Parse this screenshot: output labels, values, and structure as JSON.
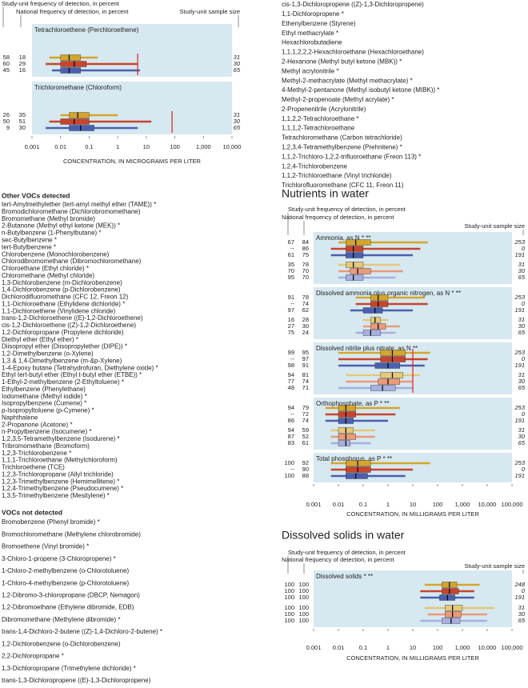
{
  "voc_chart": {
    "type": "boxplot",
    "header_study": "Study-unit frequency of detection, in percent",
    "header_national": "National frequency of detection, in percent",
    "header_sample": "Study-unit sample size",
    "axis_title": "CONCENTRATION, IN MICROGRAMS PER LITER",
    "log_scale": true,
    "xlim": [
      0.001,
      10000
    ],
    "xticks": [
      0.001,
      0.01,
      0.1,
      1,
      10,
      100,
      {
        "value": 1000,
        "label": "1,000"
      },
      {
        "value": 10000,
        "label": "10,000"
      }
    ],
    "colors": [
      "#d4a52a",
      "#c8442c",
      "#4a5fae",
      "#e6c878",
      "#ec9a78",
      "#a7aee0"
    ],
    "benchmark_color": "#e02020",
    "panels": [
      {
        "title": "Tetrachloroethene (Perchloroethene)",
        "benchmark": 5,
        "rows": [
          {
            "study_frequency": 58,
            "national_frequency": 18,
            "sample_size": 31,
            "range": [
              0.004,
              0.2
            ],
            "box": [
              0.01,
              0.05
            ],
            "median": 0.02
          },
          {
            "study_frequency": 60,
            "national_frequency": 29,
            "sample_size": 30,
            "range": [
              0.003,
              5
            ],
            "box": [
              0.01,
              0.08
            ],
            "median": 0.03
          },
          {
            "study_frequency": 45,
            "national_frequency": 16,
            "sample_size": 65,
            "range": [
              0.005,
              6
            ],
            "box": [
              0.01,
              0.05
            ],
            "median": 0.02
          }
        ]
      },
      {
        "title": "Trichloromethane (Chloroform)",
        "benchmark": 80,
        "rows": [
          {
            "study_frequency": 26,
            "national_frequency": 35,
            "sample_size": 31,
            "range": [
              0.01,
              1
            ],
            "box": [
              0.02,
              0.1
            ],
            "median": 0.04
          },
          {
            "study_frequency": 50,
            "national_frequency": 51,
            "sample_size": 30,
            "range": [
              0.004,
              15
            ],
            "box": [
              0.01,
              0.1
            ],
            "median": 0.03
          },
          {
            "study_frequency": 9,
            "national_frequency": 30,
            "sample_size": 65,
            "range": [
              0.003,
              5
            ],
            "box": [
              0.02,
              0.15
            ],
            "median": 0.05
          }
        ]
      }
    ]
  },
  "voc_list_top": [
    "cis-1,3-Dichloropropene ((Z)-1,3-Dichloropropene)",
    "1,1-Dichloropropene *",
    "Ethenylbenzene (Styrene)",
    "Ethyl methacrylate *",
    "Hexachlorobutadiene",
    "1,1,1,2,2,2-Hexachloroethane (Hexachloroethane)",
    "2-Hexanone (Methyl butyl ketone (MBK)) *",
    "Methyl acrylonitrile *",
    "Methyl-2-methacrylate (Methyl methacrylate) *",
    "4-Methyl-2-pentanone (Methyl isobutyl ketone (MIBK)) *",
    "Methyl-2-propenoate (Methyl acrylate) *",
    "2-Propenenitrile (Acrylonitrile)",
    "1,1,2,2-Tetrachloroethane *",
    "1,1,1,2-Tetrachloroethane",
    "Tetrachloromethane (Carbon tetrachloride)",
    "1,2,3,4-Tetramethylbenzene (Prehnitene) *",
    "1,1,2-Trichloro-1,2,2-trifluoroethane (Freon 113) *",
    "1,2,4-Trichlorobenzene",
    "1,1,2-Trichloroethane (Vinyl trichloride)",
    "Trichlorofluoromethane (CFC 11, Freon 11)"
  ],
  "other_vocs": {
    "heading": "Other VOCs detected",
    "items": [
      "tert-Amylmethylether (tert-amyl methyl ether (TAME)) *",
      "Bromodichloromethane (Dichlorobromomethane)",
      "Bromomethane (Methyl bromide)",
      "2-Butanone (Methyl ethyl ketone (MEK)) *",
      "n-Butylbenzene (1-Phenylbutane) *",
      "sec-Butylbenzene *",
      "tert-Butylbenzene *",
      "Chlorobenzene (Monochlorobenzene)",
      "Chlorodibromomethane (Dibromochloromethane)",
      "Chloroethane (Ethyl chloride) *",
      "Chloromethane (Methyl chloride)",
      "1,3-Dichlorobenzene (m-Dichlorobenzene)",
      "1,4-Dichlorobenzene (p-Dichlorobenzene)",
      "Dichlorodifluoromethane (CFC 12, Freon 12)",
      "1,1-Dichloroethane (Ethylidene dichloride) *",
      "1,1-Dichloroethene (Vinylidene chloride)",
      "trans-1,2-Dichloroethene ((E)-1,2-Dichloroethene)",
      "cis-1,2-Dichloroethene ((Z)-1,2-Dichloroethene)",
      "1,2-Dichloropropane (Propylene dichloride)",
      "Diethyl ether (Ethyl ether) *",
      "Diisopropyl ether (Diisopropylether (DIPE)) *",
      "1,2-Dimethylbenzene (o-Xylene)",
      "1,3 & 1,4-Dimethylbenzene (m-&p-Xylene)",
      "1-4-Epoxy butane (Tetrahydrofuran, Diethylene oxide) *",
      "Ethyl tert-butyl ether (Ethyl t-butyl ether (ETBE)) *",
      "1-Ethyl-2-methylbenzene (2-Ethyltoluene) *",
      "Ethylbenzene (Phenylethane)",
      "Iodomethane (Methyl iodide) *",
      "Isopropylbenzene (Cumene) *",
      "p-Isopropyltoluene (p-Cymene) *",
      "Naphthalene",
      "2-Propanone (Acetone) *",
      "n-Propylbenzene (Isocumene) *",
      "1,2,3,5-Tetramethylbenzene (Isodurene) *",
      "Tribromomethane (Bromoform)",
      "1,2,3-Trichlorobenzene *",
      "1,1,1-Trichloroethane (Methylchloroform)",
      "Trichloroethene (TCE)",
      "1,2,3-Trichloropropane (Allyl trichloride)",
      "1,2,3-Trimethylbenzene (Hemimellitene) *",
      "1,2,4-Trimethylbenzene (Pseudocumene) *",
      "1,3,5-Trimethylbenzene (Mesitylene) *"
    ]
  },
  "vocs_not_detected": {
    "heading": "VOCs not detected",
    "items": [
      "Bromobenzene (Phenyl bromide) *",
      "Bromochloromethane (Methylene chlorobromide)",
      "Bromoethene (Vinyl bromide) *",
      "3-Chloro-1-propene (3-Chloropropene) *",
      "1-Chloro-2-methylbenzene (o-Chlorotoluene)",
      "1-Chloro-4-methylbenzene (p-Chlorotoluene)",
      "1,2-Dibromo-3-chloropropane (DBCP, Nemagon)",
      "1,2-Dibromoethane (Ethylene dibromide, EDB)",
      "Dibromomethane (Methylene dibromide) *",
      "trans-1,4-Dichloro-2-butene ((Z)-1,4-Dichloro-2-butene) *",
      "1,2-Dichlorobenzene (o-Dichlorobenzene)",
      "2,2-Dichloropropane *",
      "1,3-Dichloropropane (Trimethylene dichloride) *",
      "trans-1,3-Dichloropropene ((E)-1,3-Dichloropropene)"
    ]
  },
  "nutrients_chart": {
    "type": "boxplot",
    "section_title": "Nutrients in water",
    "header_study": "Study-unit frequency of detection, in percent",
    "header_national": "National frequency of detection, in percent",
    "header_sample": "Study-unit sample size",
    "axis_title": "CONCENTRATION, IN MILLIGRAMS PER LITER",
    "log_scale": true,
    "xlim": [
      0.001,
      100000
    ],
    "xticks": [
      0.001,
      0.01,
      0.1,
      1,
      10,
      100,
      {
        "value": 1000,
        "label": "1,000"
      },
      {
        "value": 10000,
        "label": "10,000"
      },
      {
        "value": 100000,
        "label": "100,000"
      }
    ],
    "colors": [
      "#d4a52a",
      "#c8442c",
      "#4a5fae",
      "#e6c878",
      "#ec9a78",
      "#a7aee0"
    ],
    "benchmark_color": "#e02020",
    "panels": [
      {
        "title": "Ammonia, as N * **",
        "rows": [
          {
            "study_frequency": 67,
            "national_frequency": 84,
            "sample_size": 253,
            "range": [
              0.01,
              40
            ],
            "box": [
              0.02,
              0.2
            ],
            "median": 0.05
          },
          {
            "study_frequency": "--",
            "national_frequency": 86,
            "sample_size": 0,
            "range": [
              0.005,
              20
            ],
            "box": [
              0.02,
              0.1
            ],
            "median": 0.04
          },
          {
            "study_frequency": 61,
            "national_frequency": 75,
            "sample_size": 191,
            "range": [
              0.005,
              10
            ],
            "box": [
              0.02,
              0.1
            ],
            "median": 0.04
          },
          {
            "study_frequency": 35,
            "national_frequency": 78,
            "sample_size": 31,
            "range": [
              0.01,
              3
            ],
            "box": [
              0.02,
              0.1
            ],
            "median": 0.04
          },
          {
            "study_frequency": 70,
            "national_frequency": 70,
            "sample_size": 30,
            "range": [
              0.01,
              4
            ],
            "box": [
              0.03,
              0.2
            ],
            "median": 0.06
          },
          {
            "study_frequency": 95,
            "national_frequency": 70,
            "sample_size": 65,
            "range": [
              0.01,
              2
            ],
            "box": [
              0.02,
              0.1
            ],
            "median": 0.04
          }
        ]
      },
      {
        "title": "Dissolved ammonia plus organic nitrogen, as N * **",
        "rows": [
          {
            "study_frequency": 91,
            "national_frequency": 78,
            "sample_size": 253,
            "range": [
              0.05,
              30
            ],
            "box": [
              0.2,
              1
            ],
            "median": 0.4
          },
          {
            "study_frequency": "--",
            "national_frequency": 74,
            "sample_size": 0,
            "range": [
              0.05,
              40
            ],
            "box": [
              0.2,
              1
            ],
            "median": 0.4
          },
          {
            "study_frequency": 97,
            "national_frequency": 62,
            "sample_size": 191,
            "range": [
              0.03,
              10
            ],
            "box": [
              0.1,
              0.6
            ],
            "median": 0.3
          },
          {
            "study_frequency": 16,
            "national_frequency": 28,
            "sample_size": 31,
            "range": [
              0.1,
              1
            ],
            "box": [
              0.2,
              0.5
            ],
            "median": 0.3
          },
          {
            "study_frequency": 27,
            "national_frequency": 30,
            "sample_size": 30,
            "range": [
              0.1,
              3
            ],
            "box": [
              0.2,
              0.8
            ],
            "median": 0.4
          },
          {
            "study_frequency": 75,
            "national_frequency": 24,
            "sample_size": 65,
            "range": [
              0.05,
              2
            ],
            "box": [
              0.1,
              0.5
            ],
            "median": 0.2
          }
        ]
      },
      {
        "title": "Dissolved nitrite plus nitrate, as N  **",
        "benchmark": 10,
        "rows": [
          {
            "study_frequency": 99,
            "national_frequency": 95,
            "sample_size": 253,
            "range": [
              0.01,
              50
            ],
            "box": [
              0.5,
              5
            ],
            "median": 1.5
          },
          {
            "study_frequency": "--",
            "national_frequency": 97,
            "sample_size": 0,
            "range": [
              0.01,
              40
            ],
            "box": [
              0.5,
              5
            ],
            "median": 1.5
          },
          {
            "study_frequency": 98,
            "national_frequency": 91,
            "sample_size": 191,
            "range": [
              0.01,
              30
            ],
            "box": [
              0.3,
              3
            ],
            "median": 1
          },
          {
            "study_frequency": 94,
            "national_frequency": 81,
            "sample_size": 31,
            "range": [
              0.02,
              20
            ],
            "box": [
              0.5,
              4
            ],
            "median": 1.5
          },
          {
            "study_frequency": 77,
            "national_frequency": 74,
            "sample_size": 30,
            "range": [
              0.02,
              10
            ],
            "box": [
              0.4,
              3
            ],
            "median": 1
          },
          {
            "study_frequency": 48,
            "national_frequency": 71,
            "sample_size": 65,
            "range": [
              0.01,
              10
            ],
            "box": [
              0.2,
              2
            ],
            "median": 0.6
          }
        ]
      },
      {
        "title": "Orthophosphate, as P * **",
        "rows": [
          {
            "study_frequency": 94,
            "national_frequency": 79,
            "sample_size": 253,
            "range": [
              0.003,
              3
            ],
            "box": [
              0.01,
              0.05
            ],
            "median": 0.02
          },
          {
            "study_frequency": "--",
            "national_frequency": 72,
            "sample_size": 0,
            "range": [
              0.003,
              2
            ],
            "box": [
              0.01,
              0.05
            ],
            "median": 0.02
          },
          {
            "study_frequency": 86,
            "national_frequency": 74,
            "sample_size": 191,
            "range": [
              0.003,
              1
            ],
            "box": [
              0.01,
              0.04
            ],
            "median": 0.02
          },
          {
            "study_frequency": 94,
            "national_frequency": 59,
            "sample_size": 31,
            "range": [
              0.005,
              0.3
            ],
            "box": [
              0.01,
              0.04
            ],
            "median": 0.02
          },
          {
            "study_frequency": 87,
            "national_frequency": 52,
            "sample_size": 30,
            "range": [
              0.005,
              0.3
            ],
            "box": [
              0.01,
              0.05
            ],
            "median": 0.02
          },
          {
            "study_frequency": 83,
            "national_frequency": 61,
            "sample_size": 65,
            "range": [
              0.005,
              0.2
            ],
            "box": [
              0.01,
              0.03
            ],
            "median": 0.02
          }
        ]
      },
      {
        "title": "Total phosphorus, as P * **",
        "rows": [
          {
            "study_frequency": 100,
            "national_frequency": 92,
            "sample_size": 253,
            "range": [
              0.005,
              50
            ],
            "box": [
              0.02,
              0.2
            ],
            "median": 0.06
          },
          {
            "study_frequency": "--",
            "national_frequency": 90,
            "sample_size": 0,
            "range": [
              0.005,
              10
            ],
            "box": [
              0.02,
              0.2
            ],
            "median": 0.06
          },
          {
            "study_frequency": 100,
            "national_frequency": 88,
            "sample_size": 191,
            "range": [
              0.005,
              5
            ],
            "box": [
              0.02,
              0.15
            ],
            "median": 0.05
          }
        ]
      }
    ]
  },
  "solids_chart": {
    "type": "boxplot",
    "section_title": "Dissolved solids in water",
    "header_study": "Study-unit frequency of detection, in percent",
    "header_national": "National frequency of detection, in percent",
    "header_sample": "Study-unit sample size",
    "axis_title": "CONCENTRATION, IN MILLIGRAMS PER LITER",
    "log_scale": true,
    "xlim": [
      0.001,
      100000
    ],
    "xticks": [
      0.001,
      0.01,
      0.1,
      1,
      10,
      100,
      {
        "value": 1000,
        "label": "1,000"
      },
      {
        "value": 10000,
        "label": "10,000"
      },
      {
        "value": 100000,
        "label": "100,000"
      }
    ],
    "colors": [
      "#d4a52a",
      "#c8442c",
      "#4a5fae",
      "#e6c878",
      "#ec9a78",
      "#a7aee0"
    ],
    "benchmark_color": "#e02020",
    "panels": [
      {
        "title": "Dissolved solids * **",
        "rows": [
          {
            "study_frequency": 100,
            "national_frequency": 100,
            "sample_size": 248,
            "range": [
              30,
              5000
            ],
            "box": [
              150,
              600
            ],
            "median": 300
          },
          {
            "study_frequency": 100,
            "national_frequency": 100,
            "sample_size": 0,
            "range": [
              20,
              3000
            ],
            "box": [
              150,
              700
            ],
            "median": 300
          },
          {
            "study_frequency": 100,
            "national_frequency": 100,
            "sample_size": 191,
            "range": [
              20,
              3000
            ],
            "box": [
              120,
              500
            ],
            "median": 250
          },
          {
            "study_frequency": 100,
            "national_frequency": 100,
            "sample_size": 31,
            "range": [
              30,
              20000
            ],
            "box": [
              200,
              1000
            ],
            "median": 400
          },
          {
            "study_frequency": 100,
            "national_frequency": 100,
            "sample_size": 30,
            "range": [
              40,
              10000
            ],
            "box": [
              200,
              900
            ],
            "median": 400
          },
          {
            "study_frequency": 100,
            "national_frequency": 100,
            "sample_size": 65,
            "range": [
              20,
              10000
            ],
            "box": [
              150,
              800
            ],
            "median": 350
          }
        ]
      }
    ]
  }
}
